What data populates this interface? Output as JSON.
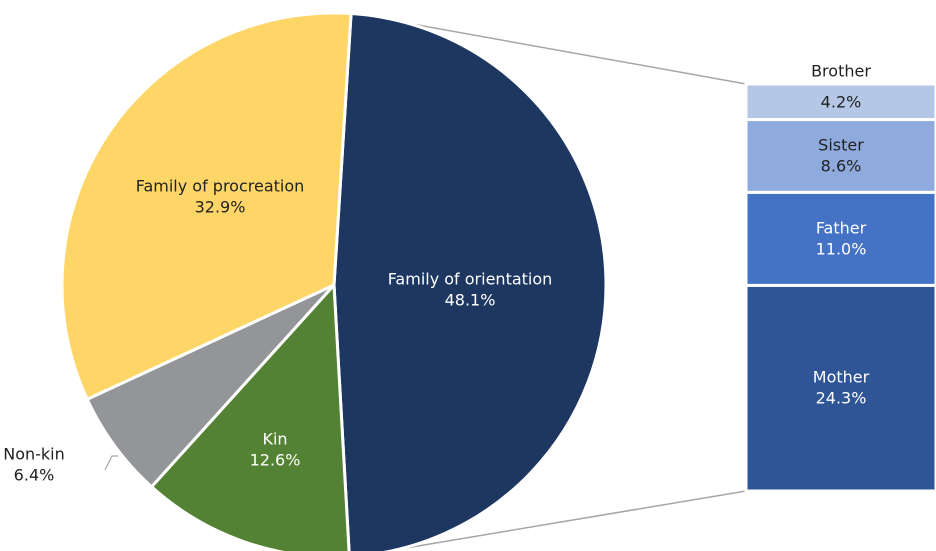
{
  "chart_data": [
    {
      "type": "pie",
      "categories": [
        "Family of orientation",
        "Kin",
        "Non-kin",
        "Family of procreation"
      ],
      "values": [
        48.1,
        12.6,
        6.4,
        32.9
      ],
      "value_labels": [
        "48.1%",
        "12.6%",
        "6.4%",
        "32.9%"
      ],
      "colors": [
        "#1d3761",
        "#548235",
        "#939598",
        "#fed668"
      ]
    },
    {
      "type": "bar",
      "stacked": true,
      "categories": [
        "Mother",
        "Father",
        "Sister",
        "Brother"
      ],
      "values": [
        24.3,
        11.0,
        8.6,
        4.2
      ],
      "value_labels": [
        "24.3%",
        "11.0%",
        "8.6%",
        "4.2%"
      ],
      "colors": [
        "#2f5597",
        "#4472c4",
        "#8faadc",
        "#b4c7e7"
      ]
    }
  ]
}
